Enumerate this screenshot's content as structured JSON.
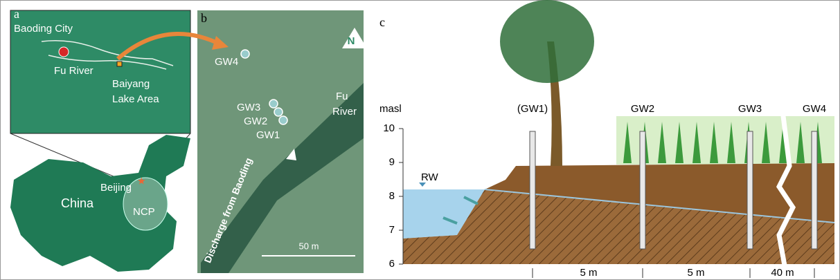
{
  "panel_a": {
    "label": "a",
    "inset": {
      "city": "Baoding City",
      "river": "Fu River",
      "lake": [
        "Baiyang",
        "Lake Area"
      ]
    },
    "map": {
      "country": "China",
      "capital": "Beijing",
      "region": "NCP"
    }
  },
  "panel_b": {
    "label": "b",
    "north": "N",
    "wells": [
      "GW4",
      "GW3",
      "GW2",
      "GW1"
    ],
    "river": [
      "Fu",
      "River"
    ],
    "flow": "Discharge from Baoding",
    "scale": "50 m"
  },
  "panel_c": {
    "label": "c",
    "axis_label": "masl",
    "ylim": [
      6,
      10
    ],
    "yticks": [
      6,
      7,
      8,
      9,
      10
    ],
    "wells": [
      "(GW1)",
      "GW2",
      "GW3",
      "GW4"
    ],
    "water": "RW",
    "distances": [
      "5 m",
      "5 m",
      "40 m"
    ]
  }
}
